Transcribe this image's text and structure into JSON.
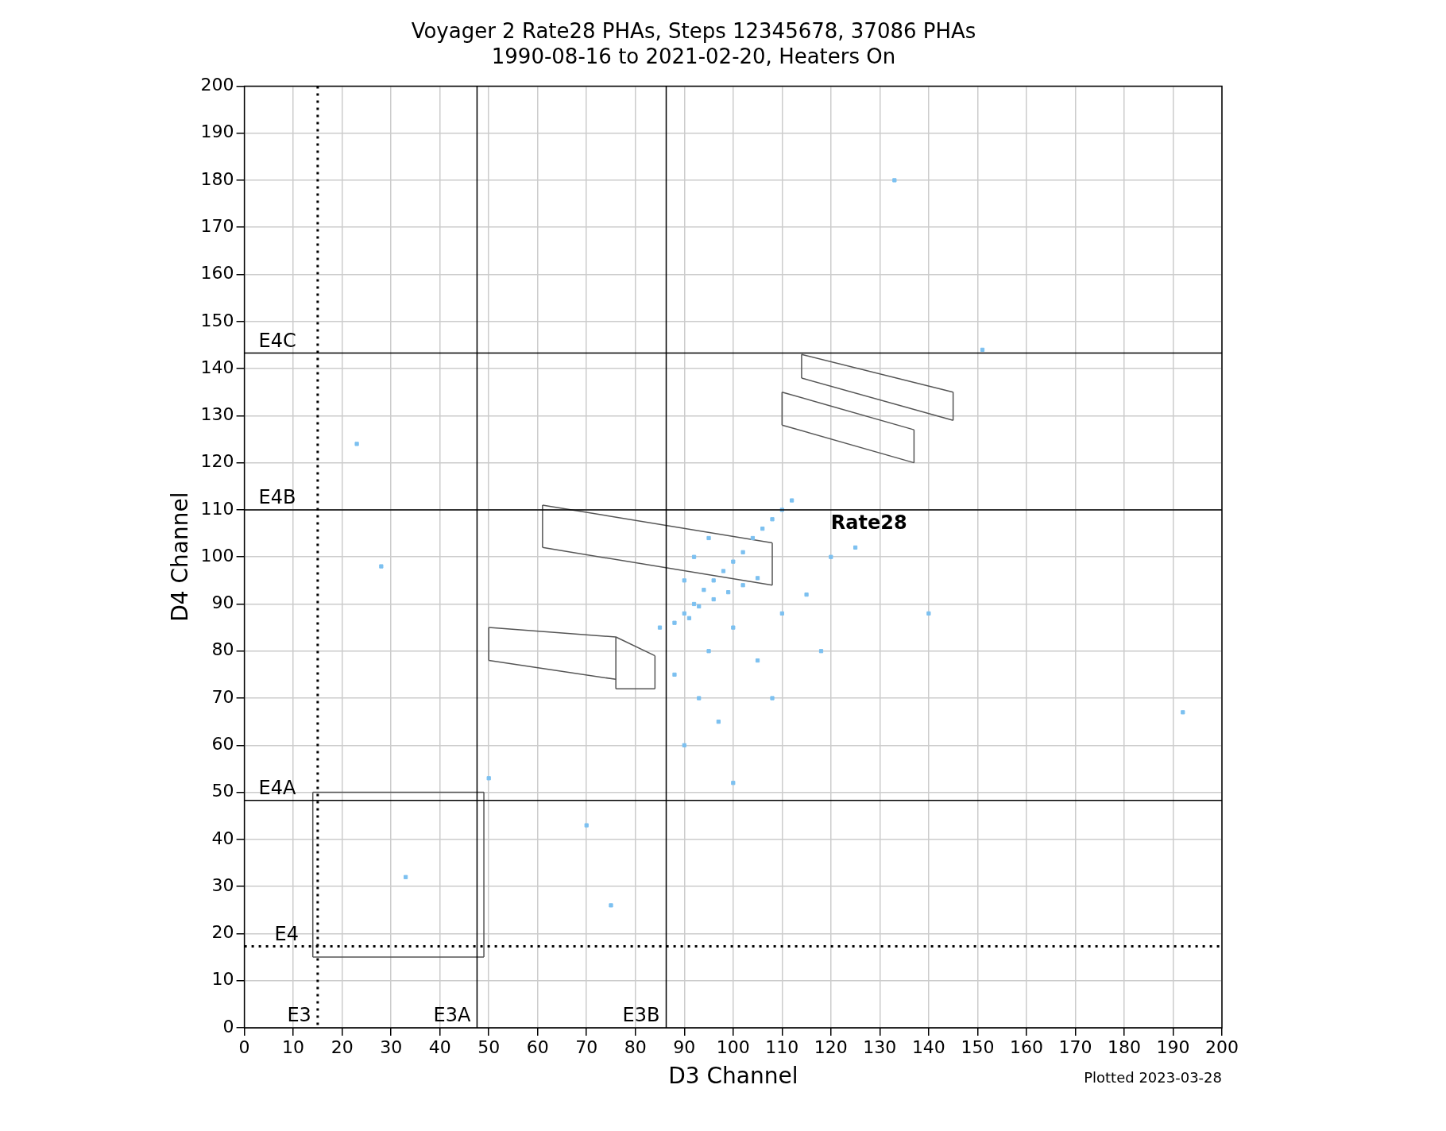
{
  "chart_data": {
    "type": "scatter",
    "title": "Voyager 2 Rate28 PHAs, Steps 12345678, 37086 PHAs",
    "subtitle": "1990-08-16 to 2021-02-20, Heaters On",
    "xlabel": "D3 Channel",
    "ylabel": "D4 Channel",
    "xlim": [
      0,
      200
    ],
    "ylim": [
      0,
      200
    ],
    "xticks": [
      0,
      10,
      20,
      30,
      40,
      50,
      60,
      70,
      80,
      90,
      100,
      110,
      120,
      130,
      140,
      150,
      160,
      170,
      180,
      190,
      200
    ],
    "yticks": [
      0,
      10,
      20,
      30,
      40,
      50,
      60,
      70,
      80,
      90,
      100,
      110,
      120,
      130,
      140,
      150,
      160,
      170,
      180,
      190,
      200
    ],
    "grid": true,
    "legend": false,
    "series": [
      {
        "type": "scatter",
        "marker": "square",
        "color": "#7cc0f0",
        "x": [
          88,
          90,
          92,
          94,
          96,
          98,
          100,
          102,
          104,
          106,
          108,
          110,
          112,
          91,
          93,
          96,
          99,
          102,
          105,
          92,
          95,
          90,
          100,
          95,
          105,
          93,
          97,
          90,
          100,
          110,
          115,
          120,
          125,
          85,
          118,
          88,
          108,
          133,
          151,
          192,
          140,
          33,
          23,
          28,
          70,
          75,
          50
        ],
        "values": [
          86,
          88,
          90,
          93,
          95,
          97,
          99,
          101,
          104,
          106,
          108,
          110,
          112,
          87,
          89.5,
          91,
          92.5,
          94,
          95.5,
          100,
          104,
          95,
          85,
          80,
          78,
          70,
          65,
          60,
          52,
          88,
          92,
          100,
          102,
          85,
          80,
          75,
          70,
          180,
          144,
          67,
          88,
          32,
          124,
          98,
          43,
          26,
          53
        ]
      },
      {
        "type": "line",
        "color": "#555555",
        "x": [
          114,
          145
        ],
        "values": [
          143,
          135
        ]
      },
      {
        "type": "line",
        "color": "#555555",
        "x": [
          114,
          145
        ],
        "values": [
          138,
          129
        ]
      },
      {
        "type": "line",
        "color": "#555555",
        "x": [
          114,
          114
        ],
        "values": [
          138,
          143
        ]
      },
      {
        "type": "line",
        "color": "#555555",
        "x": [
          145,
          145
        ],
        "values": [
          129,
          135
        ]
      },
      {
        "type": "line",
        "color": "#555555",
        "x": [
          110,
          137
        ],
        "values": [
          135,
          127
        ]
      },
      {
        "type": "line",
        "color": "#555555",
        "x": [
          110,
          137
        ],
        "values": [
          128,
          120
        ]
      },
      {
        "type": "line",
        "color": "#555555",
        "x": [
          110,
          110
        ],
        "values": [
          128,
          135
        ]
      },
      {
        "type": "line",
        "color": "#555555",
        "x": [
          137,
          137
        ],
        "values": [
          120,
          127
        ]
      },
      {
        "type": "line",
        "color": "#555555",
        "x": [
          61,
          108
        ],
        "values": [
          111,
          103
        ]
      },
      {
        "type": "line",
        "color": "#555555",
        "x": [
          61,
          108
        ],
        "values": [
          102,
          94
        ]
      },
      {
        "type": "line",
        "color": "#555555",
        "x": [
          61,
          61
        ],
        "values": [
          102,
          111
        ]
      },
      {
        "type": "line",
        "color": "#555555",
        "x": [
          108,
          108
        ],
        "values": [
          94,
          103
        ]
      },
      {
        "type": "line",
        "color": "#555555",
        "x": [
          50,
          76,
          84
        ],
        "values": [
          85,
          83,
          79
        ]
      },
      {
        "type": "line",
        "color": "#555555",
        "x": [
          50,
          76
        ],
        "values": [
          78,
          74
        ]
      },
      {
        "type": "line",
        "color": "#555555",
        "x": [
          76,
          84
        ],
        "values": [
          72,
          72
        ]
      },
      {
        "type": "line",
        "color": "#555555",
        "x": [
          50,
          50
        ],
        "values": [
          78,
          85
        ]
      },
      {
        "type": "line",
        "color": "#555555",
        "x": [
          76,
          76
        ],
        "values": [
          72,
          83
        ]
      },
      {
        "type": "line",
        "color": "#555555",
        "x": [
          84,
          84
        ],
        "values": [
          72,
          79
        ]
      },
      {
        "type": "line",
        "color": "#555555",
        "x": [
          14,
          49
        ],
        "values": [
          50,
          50
        ]
      },
      {
        "type": "line",
        "color": "#555555",
        "x": [
          14,
          49
        ],
        "values": [
          15,
          15
        ]
      },
      {
        "type": "line",
        "color": "#555555",
        "x": [
          14,
          14
        ],
        "values": [
          15,
          50
        ]
      },
      {
        "type": "line",
        "color": "#555555",
        "x": [
          49,
          49
        ],
        "values": [
          15,
          50
        ]
      }
    ],
    "ref_lines": [
      {
        "axis": "x",
        "value": 15,
        "label": "E3",
        "color": "#000000",
        "line_style": "dotted"
      },
      {
        "axis": "x",
        "value": 47.6,
        "label": "E3A",
        "color": "#000000"
      },
      {
        "axis": "x",
        "value": 86.3,
        "label": "E3B",
        "color": "#000000"
      },
      {
        "axis": "y",
        "value": 17.3,
        "label": "E4",
        "color": "#000000",
        "line_style": "dotted"
      },
      {
        "axis": "y",
        "value": 48.3,
        "label": "E4A",
        "color": "#000000"
      },
      {
        "axis": "y",
        "value": 110,
        "label": "E4B",
        "color": "#000000"
      },
      {
        "axis": "y",
        "value": 143.3,
        "label": "E4C",
        "color": "#000000"
      }
    ],
    "annotations": [
      "Rate28",
      "Plotted 2023-03-28"
    ]
  }
}
